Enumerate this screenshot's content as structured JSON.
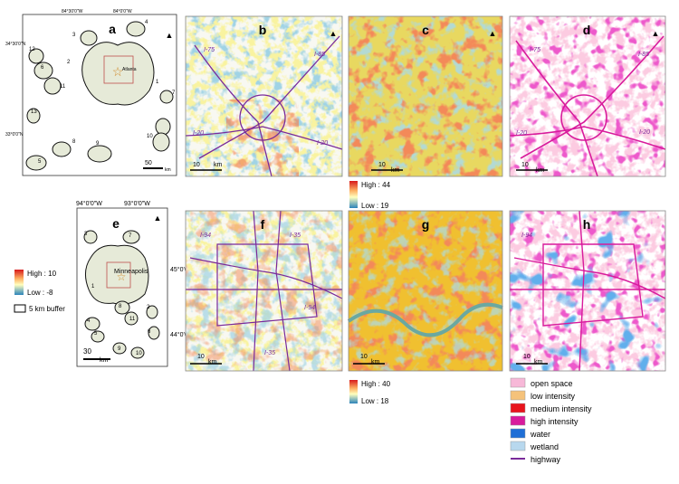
{
  "atlanta": {
    "letter": "a",
    "city": "Atlanta",
    "lon_labels": [
      "84°30'0\"W",
      "84°0'0\"W"
    ],
    "lat_labels": [
      "34°30'0\"N",
      "33°0'0\"N"
    ],
    "sites": [
      "1",
      "2",
      "3",
      "4",
      "5",
      "6",
      "7",
      "8",
      "9",
      "10",
      "11",
      "12",
      "13"
    ],
    "scale": "50",
    "unit": "km"
  },
  "atlanta_panels": [
    {
      "letter": "b",
      "scale": "10",
      "unit": "km",
      "highways": [
        "I-75",
        "I-85",
        "I-20",
        "I-20"
      ]
    },
    {
      "letter": "c",
      "scale": "10",
      "unit": "km"
    },
    {
      "letter": "d",
      "scale": "10",
      "unit": "km",
      "highways": [
        "I-75",
        "I-85",
        "I-20",
        "I-20"
      ]
    }
  ],
  "minneapolis": {
    "letter": "e",
    "city": "Minneapolis",
    "lon_labels": [
      "94°0'0\"W",
      "93°0'0\"W"
    ],
    "lat_labels": [
      "45°0'0\"N",
      "44°0'0\"N"
    ],
    "sites": [
      "1",
      "2",
      "3",
      "4",
      "5",
      "6",
      "7",
      "8",
      "9",
      "10",
      "11"
    ],
    "scale": "30",
    "unit": "km"
  },
  "minneapolis_panels": [
    {
      "letter": "f",
      "scale": "10",
      "unit": "km",
      "highways": [
        "I-94",
        "I-35",
        "I-94",
        "I-35"
      ]
    },
    {
      "letter": "g",
      "scale": "10",
      "unit": "km"
    },
    {
      "letter": "h",
      "scale": "10",
      "unit": "km",
      "highways": [
        "I-94"
      ]
    }
  ],
  "legend_diff": {
    "high": "High : 10",
    "low": "Low : -8",
    "buffer": "5 km buffer"
  },
  "legend_c": {
    "high": "High : 44",
    "low": "Low : 19"
  },
  "legend_g": {
    "high": "High : 40",
    "low": "Low : 18"
  },
  "land_cover": [
    {
      "label": "open space",
      "color": "#f7b8d8"
    },
    {
      "label": "low intensity",
      "color": "#f5c27a"
    },
    {
      "label": "medium intensity",
      "color": "#e8141c"
    },
    {
      "label": "high intensity",
      "color": "#d81b9c"
    },
    {
      "label": "water",
      "color": "#1f6fd6"
    },
    {
      "label": "wetland",
      "color": "#b8d8ee"
    },
    {
      "label": "highway",
      "color": "#7a2a9a"
    }
  ]
}
